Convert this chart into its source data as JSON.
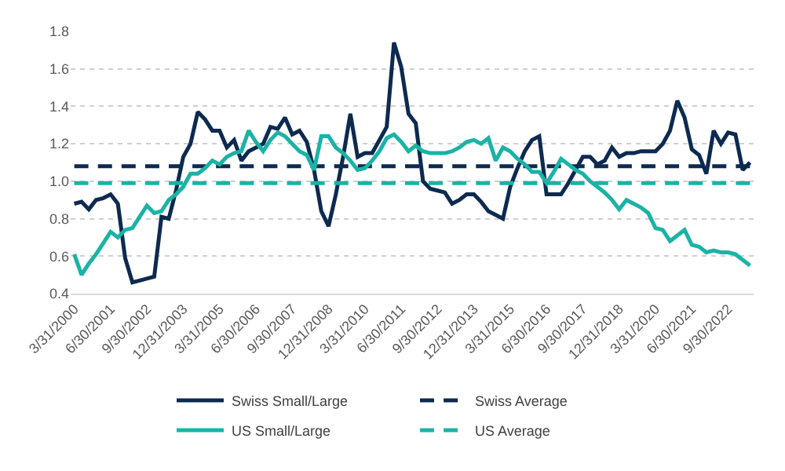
{
  "chart_data": {
    "type": "line",
    "categories": [
      "3/31/2000",
      null,
      null,
      null,
      null,
      "6/30/2001",
      null,
      null,
      null,
      null,
      "9/30/2002",
      null,
      null,
      null,
      null,
      "12/31/2003",
      null,
      null,
      null,
      null,
      "3/31/2005",
      null,
      null,
      null,
      null,
      "6/30/2006",
      null,
      null,
      null,
      null,
      "9/30/2007",
      null,
      null,
      null,
      null,
      "12/31/2008",
      null,
      null,
      null,
      null,
      "3/31/2010",
      null,
      null,
      null,
      null,
      "6/30/2011",
      null,
      null,
      null,
      null,
      "9/30/2012",
      null,
      null,
      null,
      null,
      "12/31/2013",
      null,
      null,
      null,
      null,
      "3/31/2015",
      null,
      null,
      null,
      null,
      "6/30/2016",
      null,
      null,
      null,
      null,
      "9/30/2017",
      null,
      null,
      null,
      null,
      "12/31/2018",
      null,
      null,
      null,
      null,
      "3/31/2020",
      null,
      null,
      null,
      null,
      "6/30/2021",
      null,
      null,
      null,
      null,
      "9/30/2022",
      null,
      null,
      null
    ],
    "series": [
      {
        "name": "Swiss Small/Large",
        "color": "#0d2a4f",
        "line_style": "solid",
        "values": [
          0.88,
          0.89,
          0.85,
          0.9,
          0.91,
          0.93,
          0.88,
          0.59,
          0.46,
          0.47,
          0.48,
          0.49,
          0.81,
          0.8,
          0.95,
          1.13,
          1.2,
          1.37,
          1.33,
          1.27,
          1.27,
          1.18,
          1.22,
          1.11,
          1.16,
          1.18,
          1.2,
          1.29,
          1.28,
          1.34,
          1.25,
          1.27,
          1.21,
          1.06,
          0.84,
          0.76,
          0.93,
          1.13,
          1.36,
          1.13,
          1.15,
          1.15,
          1.22,
          1.29,
          1.74,
          1.61,
          1.36,
          1.31,
          1.0,
          0.96,
          0.95,
          0.94,
          0.88,
          0.9,
          0.93,
          0.93,
          0.89,
          0.84,
          0.82,
          0.8,
          0.97,
          1.07,
          1.16,
          1.22,
          1.24,
          0.93,
          0.93,
          0.93,
          0.99,
          1.06,
          1.13,
          1.13,
          1.09,
          1.11,
          1.18,
          1.13,
          1.15,
          1.15,
          1.16,
          1.16,
          1.16,
          1.2,
          1.27,
          1.43,
          1.34,
          1.17,
          1.14,
          1.04,
          1.27,
          1.2,
          1.26,
          1.25,
          1.06,
          1.1
        ]
      },
      {
        "name": "Swiss Average",
        "color": "#0d2a4f",
        "line_style": "dashed",
        "values": [
          1.08,
          1.08,
          1.08,
          1.08,
          1.08,
          1.08,
          1.08,
          1.08,
          1.08,
          1.08,
          1.08,
          1.08,
          1.08,
          1.08,
          1.08,
          1.08,
          1.08,
          1.08,
          1.08,
          1.08,
          1.08,
          1.08,
          1.08,
          1.08,
          1.08,
          1.08,
          1.08,
          1.08,
          1.08,
          1.08,
          1.08,
          1.08,
          1.08,
          1.08,
          1.08,
          1.08,
          1.08,
          1.08,
          1.08,
          1.08,
          1.08,
          1.08,
          1.08,
          1.08,
          1.08,
          1.08,
          1.08,
          1.08,
          1.08,
          1.08,
          1.08,
          1.08,
          1.08,
          1.08,
          1.08,
          1.08,
          1.08,
          1.08,
          1.08,
          1.08,
          1.08,
          1.08,
          1.08,
          1.08,
          1.08,
          1.08,
          1.08,
          1.08,
          1.08,
          1.08,
          1.08,
          1.08,
          1.08,
          1.08,
          1.08,
          1.08,
          1.08,
          1.08,
          1.08,
          1.08,
          1.08,
          1.08,
          1.08,
          1.08,
          1.08,
          1.08,
          1.08,
          1.08,
          1.08,
          1.08,
          1.08,
          1.08,
          1.08,
          1.08
        ]
      },
      {
        "name": "US Small/Large",
        "color": "#1ab3a6",
        "line_style": "solid",
        "values": [
          0.61,
          0.5,
          0.56,
          0.61,
          0.67,
          0.73,
          0.7,
          0.74,
          0.75,
          0.81,
          0.87,
          0.83,
          0.84,
          0.9,
          0.93,
          0.97,
          1.04,
          1.04,
          1.07,
          1.11,
          1.09,
          1.13,
          1.15,
          1.16,
          1.27,
          1.21,
          1.16,
          1.22,
          1.26,
          1.24,
          1.2,
          1.16,
          1.14,
          1.06,
          1.24,
          1.24,
          1.18,
          1.15,
          1.11,
          1.06,
          1.07,
          1.11,
          1.16,
          1.23,
          1.25,
          1.21,
          1.16,
          1.19,
          1.16,
          1.15,
          1.15,
          1.15,
          1.16,
          1.18,
          1.21,
          1.22,
          1.2,
          1.23,
          1.11,
          1.18,
          1.16,
          1.12,
          1.09,
          1.05,
          1.05,
          0.99,
          1.05,
          1.12,
          1.09,
          1.06,
          1.04,
          1.0,
          0.97,
          0.94,
          0.9,
          0.85,
          0.9,
          0.88,
          0.86,
          0.83,
          0.75,
          0.74,
          0.68,
          0.71,
          0.74,
          0.66,
          0.65,
          0.62,
          0.63,
          0.62,
          0.62,
          0.61,
          0.58,
          0.55
        ]
      },
      {
        "name": "US Average",
        "color": "#1ab3a6",
        "line_style": "dashed",
        "values": [
          0.99,
          0.99,
          0.99,
          0.99,
          0.99,
          0.99,
          0.99,
          0.99,
          0.99,
          0.99,
          0.99,
          0.99,
          0.99,
          0.99,
          0.99,
          0.99,
          0.99,
          0.99,
          0.99,
          0.99,
          0.99,
          0.99,
          0.99,
          0.99,
          0.99,
          0.99,
          0.99,
          0.99,
          0.99,
          0.99,
          0.99,
          0.99,
          0.99,
          0.99,
          0.99,
          0.99,
          0.99,
          0.99,
          0.99,
          0.99,
          0.99,
          0.99,
          0.99,
          0.99,
          0.99,
          0.99,
          0.99,
          0.99,
          0.99,
          0.99,
          0.99,
          0.99,
          0.99,
          0.99,
          0.99,
          0.99,
          0.99,
          0.99,
          0.99,
          0.99,
          0.99,
          0.99,
          0.99,
          0.99,
          0.99,
          0.99,
          0.99,
          0.99,
          0.99,
          0.99,
          0.99,
          0.99,
          0.99,
          0.99,
          0.99,
          0.99,
          0.99,
          0.99,
          0.99,
          0.99,
          0.99,
          0.99,
          0.99,
          0.99,
          0.99,
          0.99,
          0.99,
          0.99,
          0.99,
          0.99,
          0.99,
          0.99,
          0.99,
          0.99
        ]
      }
    ],
    "ylim": [
      0.4,
      1.8
    ],
    "yticks": [
      {
        "value": 0.4,
        "label": "0.4"
      },
      {
        "value": 0.6,
        "label": "0.6"
      },
      {
        "value": 0.8,
        "label": "0.8"
      },
      {
        "value": 1,
        "label": "1.0"
      },
      {
        "value": 1.2,
        "label": "1.2"
      },
      {
        "value": 1.4,
        "label": "1.4"
      },
      {
        "value": 1.6,
        "label": "1.6"
      },
      {
        "value": 1.8,
        "label": "1.8"
      }
    ],
    "grid": "y",
    "legend": "bottom",
    "marker": "none"
  }
}
